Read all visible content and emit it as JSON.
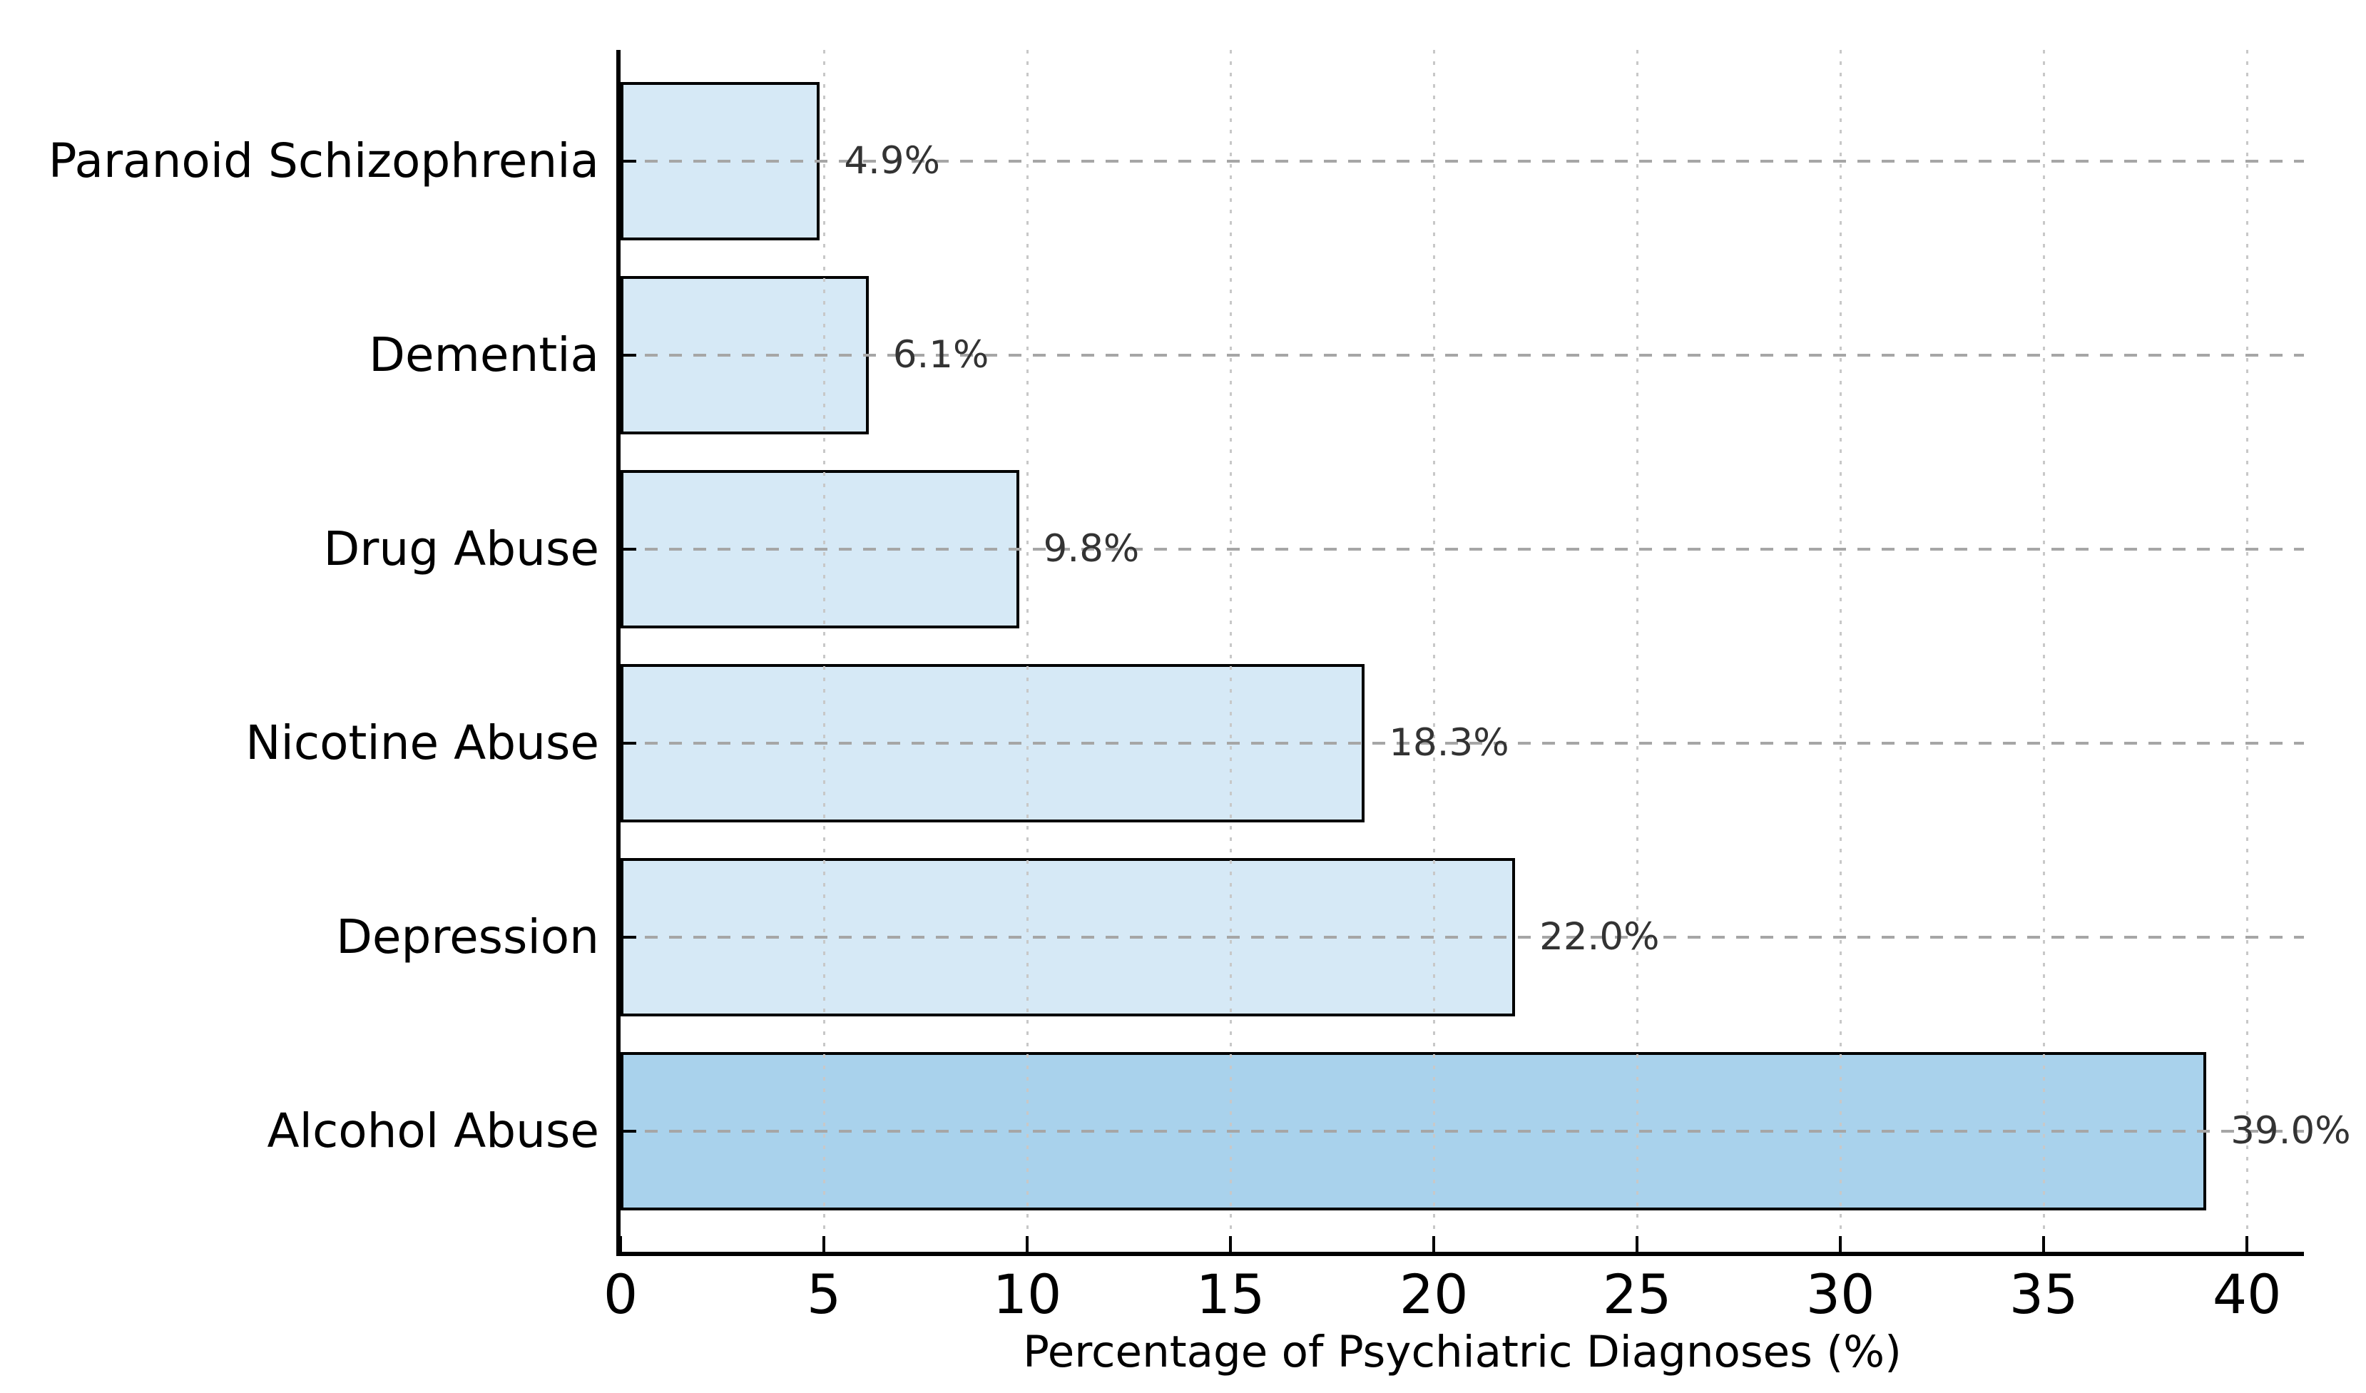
{
  "chart_data": {
    "type": "bar",
    "orientation": "horizontal",
    "category_order": "top-to-bottom",
    "categories": [
      "Paranoid Schizophrenia",
      "Dementia",
      "Drug Abuse",
      "Nicotine Abuse",
      "Depression",
      "Alcohol Abuse"
    ],
    "values": [
      4.9,
      6.1,
      9.8,
      18.3,
      22.0,
      39.0
    ],
    "value_labels": [
      "4.9%",
      "6.1%",
      "9.8%",
      "18.3%",
      "22.0%",
      "39.0%"
    ],
    "bar_colors": [
      "#d6e9f6",
      "#d6e9f6",
      "#d6e9f6",
      "#d6e9f6",
      "#d6e9f6",
      "#a9d2ec"
    ],
    "bar_edge_color": "#000000",
    "title": "",
    "xlabel": "Percentage of Psychiatric Diagnoses (%)",
    "ylabel": "",
    "xlim": [
      0,
      41.4
    ],
    "xticks": [
      0,
      5,
      10,
      15,
      20,
      25,
      30,
      35,
      40
    ],
    "grid": {
      "horizontal_style": "dashed",
      "vertical_style": "dotted",
      "horizontal_color": "#a6a6a6",
      "vertical_color": "#c8c8c8",
      "axisbelow": false
    },
    "legend": null,
    "value_label_color": "#333333",
    "axis_color": "#000000",
    "background_color": "#ffffff"
  }
}
